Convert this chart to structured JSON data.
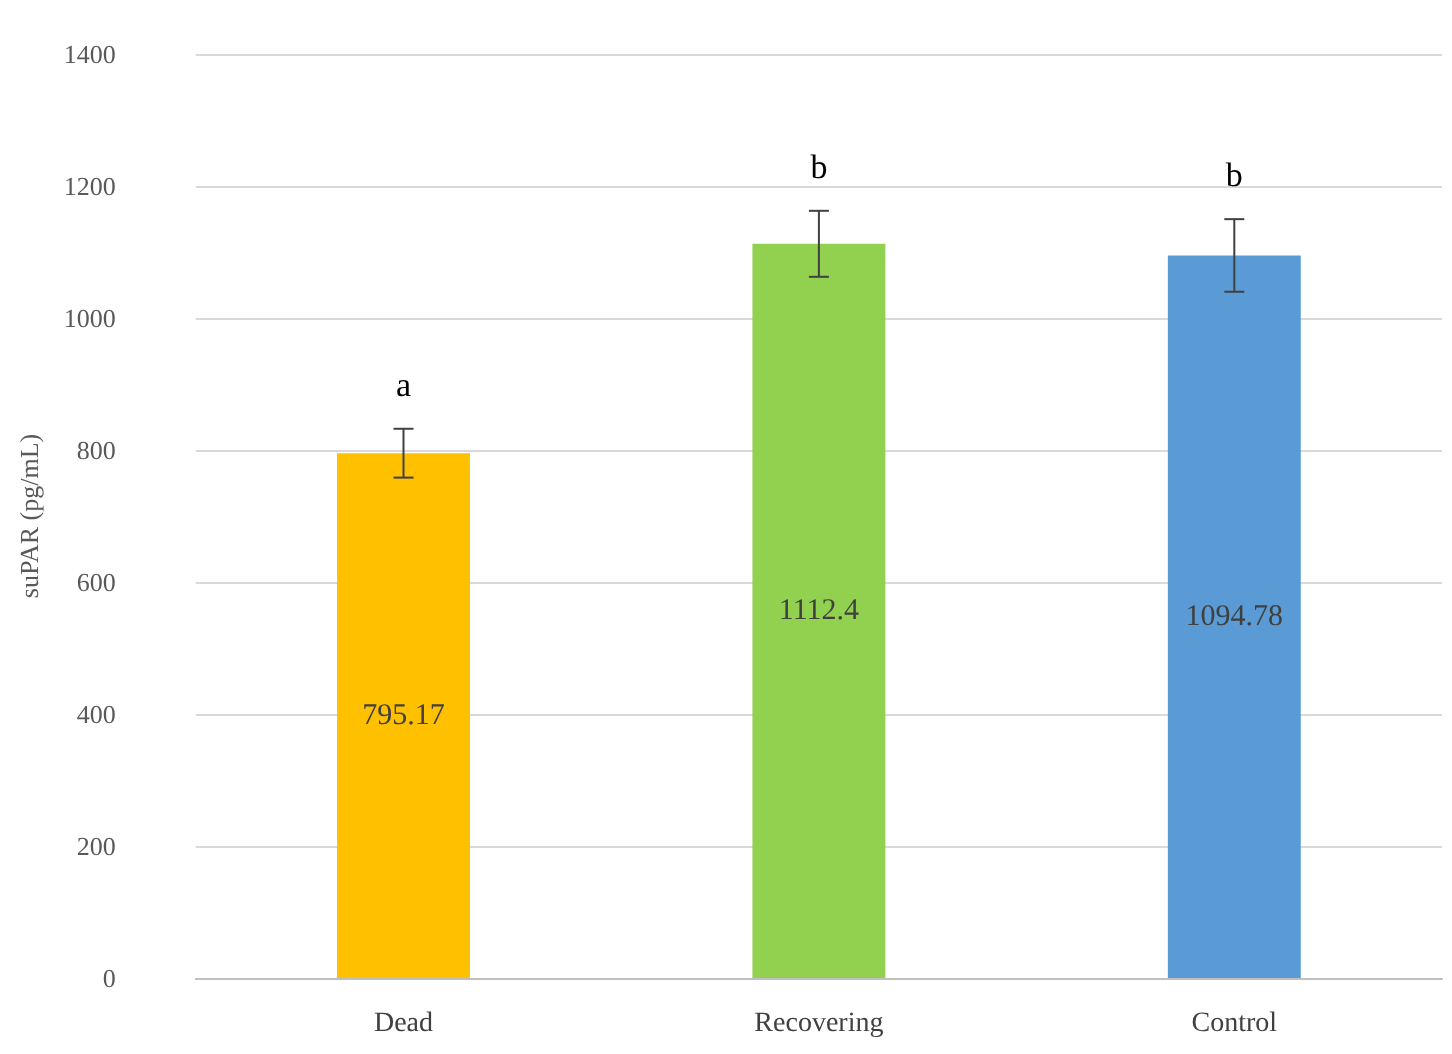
{
  "chart_data": {
    "type": "bar",
    "ylabel": "suPAR (pg/mL)",
    "categories": [
      "Dead",
      "Recovering",
      "Control"
    ],
    "values": [
      795.17,
      1112.4,
      1094.78
    ],
    "colors": [
      "#ffc000",
      "#92d050",
      "#5b9bd5"
    ],
    "errors": [
      37,
      50,
      55
    ],
    "ylim": [
      0,
      1400
    ],
    "yticks": [
      0,
      200,
      400,
      600,
      800,
      1000,
      1200,
      1400
    ],
    "grid": "y",
    "data_labels": true,
    "annotations": [
      "a",
      "b",
      "b"
    ]
  }
}
